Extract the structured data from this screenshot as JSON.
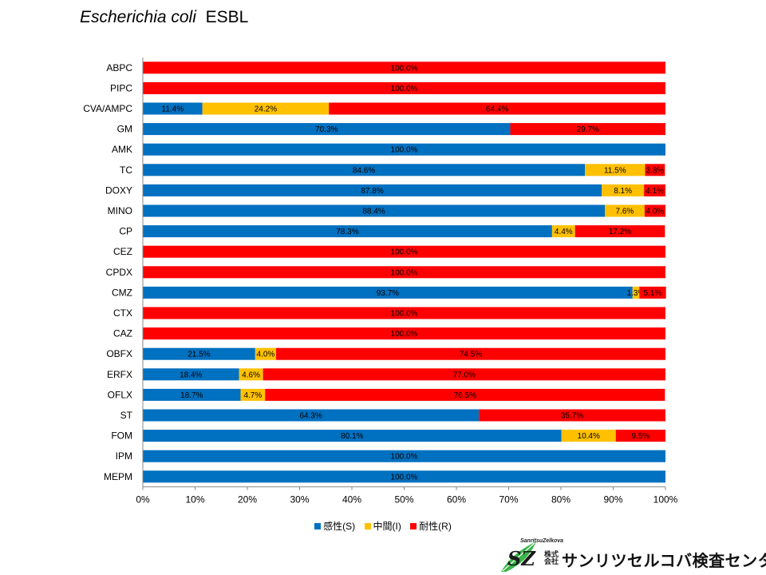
{
  "title": {
    "organism": "Escherichia coli",
    "suffix": "ESBL"
  },
  "chart_data": {
    "type": "bar",
    "orientation": "horizontal",
    "stacked": "percent",
    "categories": [
      "ABPC",
      "PIPC",
      "CVA/AMPC",
      "GM",
      "AMK",
      "TC",
      "DOXY",
      "MINO",
      "CP",
      "CEZ",
      "CPDX",
      "CMZ",
      "CTX",
      "CAZ",
      "OBFX",
      "ERFX",
      "OFLX",
      "ST",
      "FOM",
      "IPM",
      "MEPM"
    ],
    "series": [
      {
        "name": "感性(S)",
        "color": "#0070C0",
        "values": [
          0,
          0,
          11.4,
          70.3,
          100,
          84.6,
          87.8,
          88.4,
          78.3,
          0,
          0,
          93.7,
          0,
          0,
          21.5,
          18.4,
          18.7,
          64.3,
          80.1,
          100,
          100
        ]
      },
      {
        "name": "中間(I)",
        "color": "#FFC000",
        "values": [
          0,
          0,
          24.2,
          0,
          0,
          11.5,
          8.1,
          7.6,
          4.4,
          0,
          0,
          1.3,
          0,
          0,
          4.0,
          4.6,
          4.7,
          0,
          10.4,
          0,
          0
        ]
      },
      {
        "name": "耐性(R)",
        "color": "#FF0000",
        "values": [
          100,
          100,
          64.4,
          29.7,
          0,
          3.8,
          4.1,
          4.0,
          17.2,
          100,
          100,
          5.1,
          100,
          100,
          74.5,
          77.0,
          76.5,
          35.7,
          9.5,
          0,
          0
        ]
      }
    ],
    "xlim": [
      0,
      100
    ],
    "x_ticks": [
      "0%",
      "10%",
      "20%",
      "30%",
      "40%",
      "50%",
      "60%",
      "70%",
      "80%",
      "90%",
      "100%"
    ],
    "legend_position": "bottom",
    "grid": false
  },
  "logo": {
    "brand_en": "SanritsuZelkova",
    "initials": "SZ",
    "kabushiki": "株式",
    "kaisha": "会社",
    "company_name": "サンリツセルコバ検査センター"
  }
}
